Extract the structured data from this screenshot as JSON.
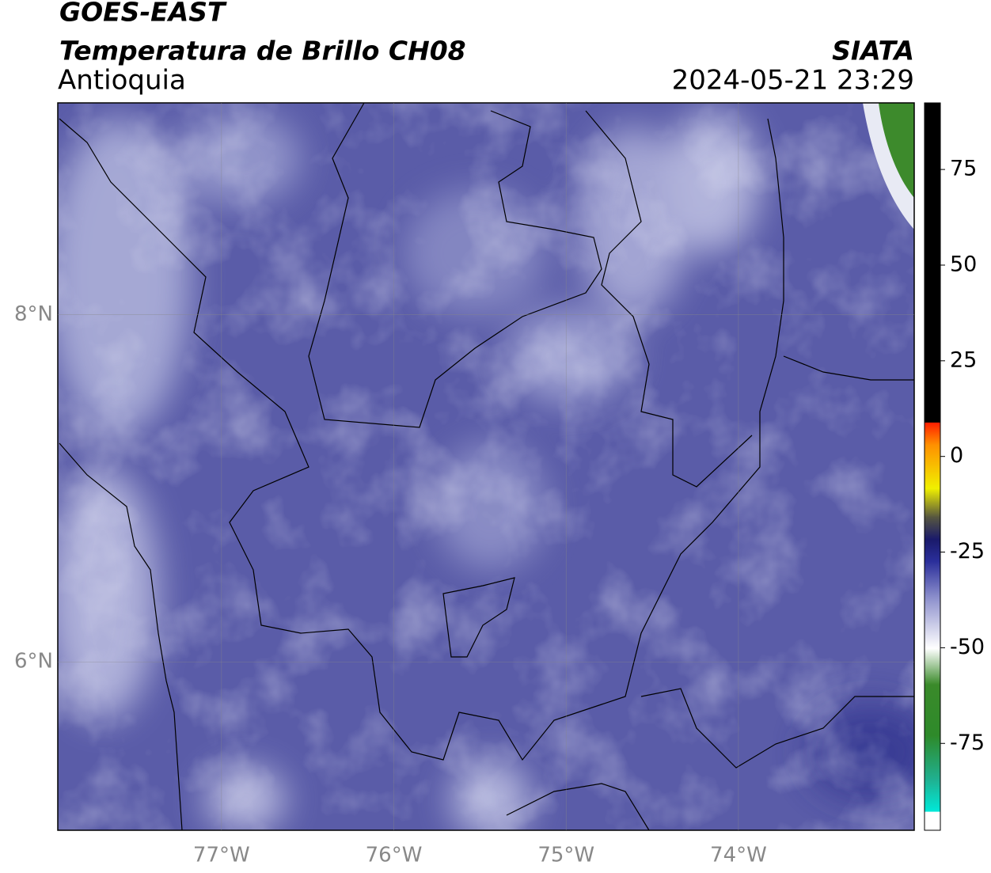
{
  "header": {
    "satellite": "GOES-EAST",
    "product": "Temperatura de Brillo CH08",
    "region": "Antioquia",
    "source": "SIATA",
    "datetime": "2024-05-21 23:29"
  },
  "map": {
    "lonlim": [
      -77.95,
      -72.98
    ],
    "latlim": [
      5.03,
      9.22
    ],
    "lonticks": [
      {
        "value": -77,
        "label": "77°W"
      },
      {
        "value": -76,
        "label": "76°W"
      },
      {
        "value": -75,
        "label": "75°W"
      },
      {
        "value": -74,
        "label": "74°W"
      }
    ],
    "latticks": [
      {
        "value": 8,
        "label": "8°N"
      },
      {
        "value": 6,
        "label": "6°N"
      }
    ],
    "grid": true
  },
  "colorbar": {
    "lim": [
      -97.7,
      92.4
    ],
    "ticks": [
      75,
      50,
      25,
      0,
      -25,
      -50,
      -75
    ]
  }
}
